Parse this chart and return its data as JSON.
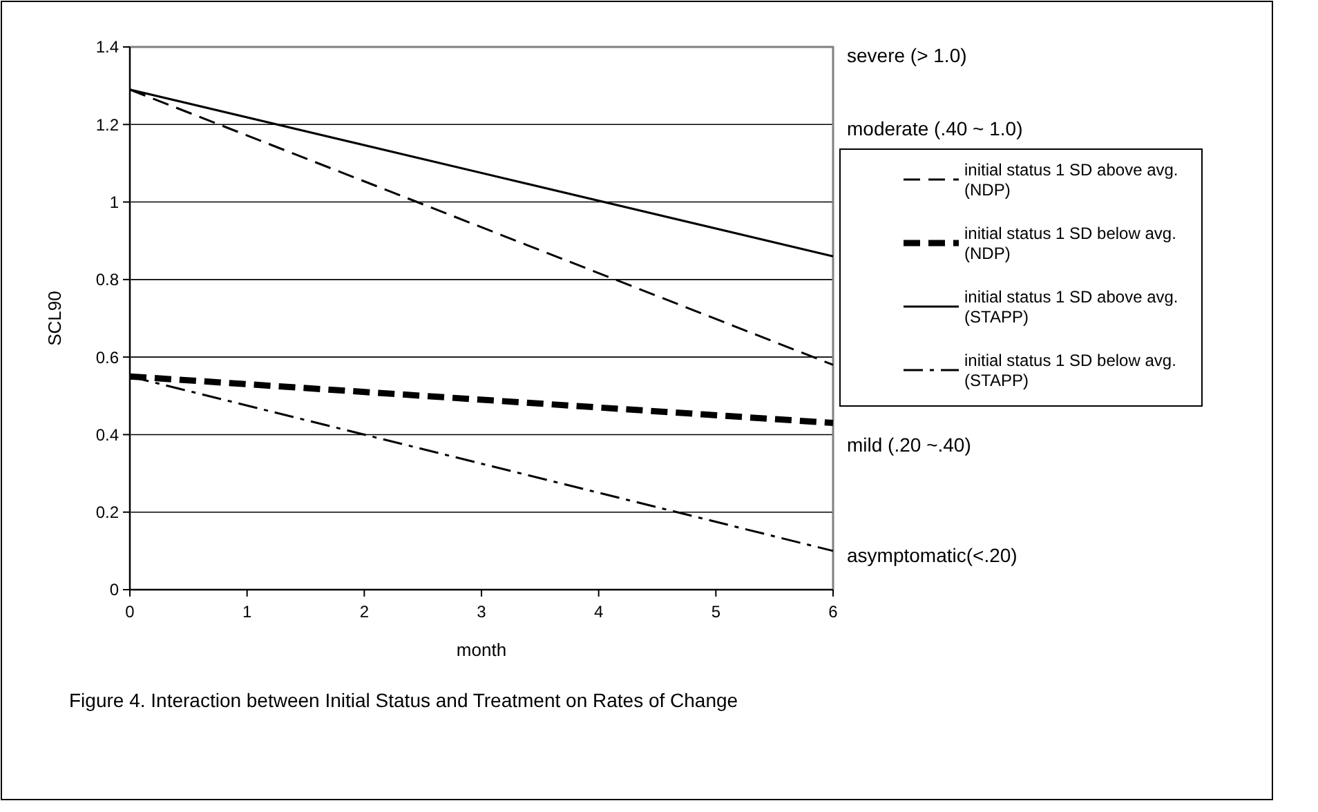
{
  "chart_data": {
    "type": "line",
    "title": "Figure 4. Interaction between Initial Status and Treatment on Rates of Change",
    "xlabel": "month",
    "ylabel": "SCL90",
    "x": [
      0,
      6
    ],
    "xlim": [
      0,
      6
    ],
    "xticks": [
      0,
      1,
      2,
      3,
      4,
      5,
      6
    ],
    "ylim": [
      0,
      1.4
    ],
    "yticks": [
      0,
      0.2,
      0.4,
      0.6,
      0.8,
      1,
      1.2,
      1.4
    ],
    "grid": "y",
    "legend": "right",
    "annotations": [
      "severe (> 1.0)",
      "moderate (.40 ~ 1.0)",
      "mild (.20 ~.40)",
      "asymptomatic(<.20)"
    ],
    "series": [
      {
        "name": "initial status 1 SD above avg. (NDP)",
        "color": "#000000",
        "line_style": "dashed",
        "values": [
          1.29,
          0.58
        ]
      },
      {
        "name": "initial status 1 SD below avg. (NDP)",
        "color": "#000000",
        "line_style": "dashed",
        "values": [
          0.55,
          0.43
        ]
      },
      {
        "name": "initial status 1 SD above avg. (STAPP)",
        "color": "#000000",
        "line_style": "solid",
        "values": [
          1.29,
          0.86
        ]
      },
      {
        "name": "initial status 1 SD below avg. (STAPP)",
        "color": "#000000",
        "line_style": "dashdot",
        "values": [
          0.55,
          0.1
        ]
      }
    ]
  }
}
